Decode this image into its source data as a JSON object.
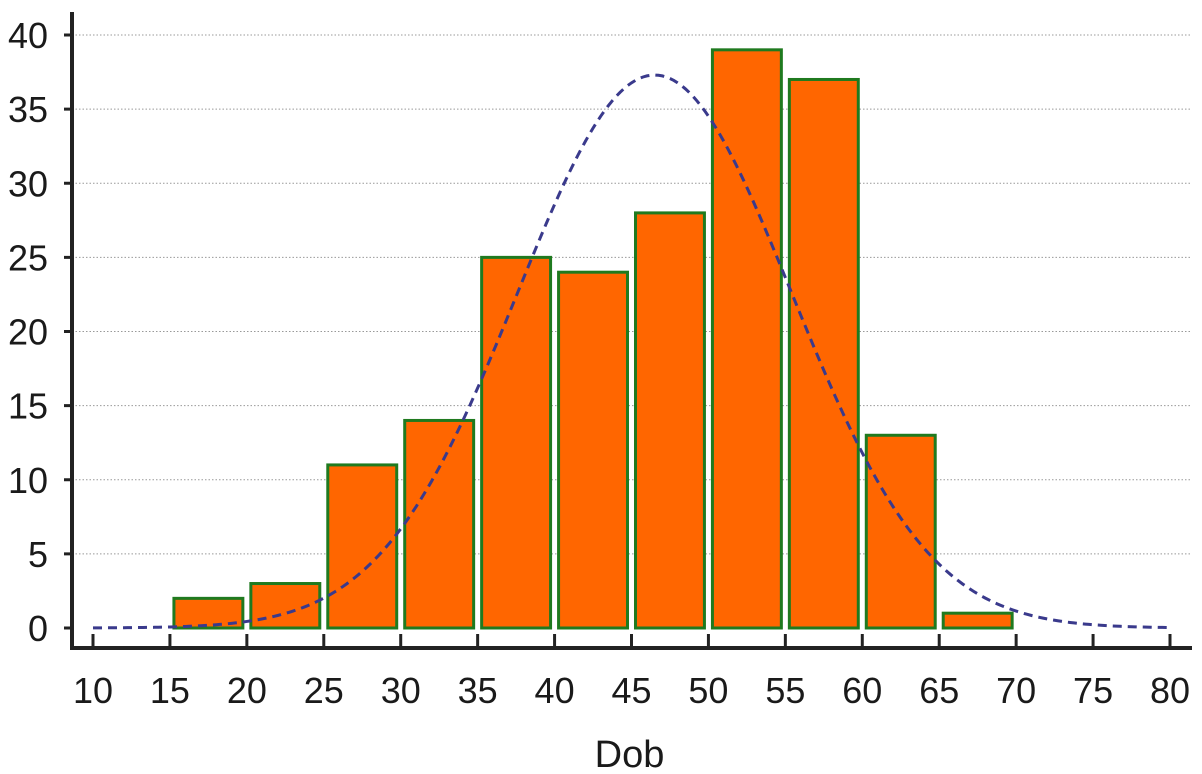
{
  "chart_data": {
    "type": "bar",
    "title": "",
    "xlabel": "Dob",
    "ylabel": "",
    "xlim": [
      10,
      80
    ],
    "ylim": [
      0,
      40
    ],
    "x_ticks": [
      10,
      15,
      20,
      25,
      30,
      35,
      40,
      45,
      50,
      55,
      60,
      65,
      70,
      75,
      80
    ],
    "y_ticks": [
      0,
      5,
      10,
      15,
      20,
      25,
      30,
      35,
      40
    ],
    "grid": "horizontal dotted",
    "legend": "none",
    "bin_width": 5,
    "bins": [
      {
        "start": 15,
        "end": 20,
        "count": 2
      },
      {
        "start": 20,
        "end": 25,
        "count": 3
      },
      {
        "start": 25,
        "end": 30,
        "count": 11
      },
      {
        "start": 30,
        "end": 35,
        "count": 14
      },
      {
        "start": 35,
        "end": 40,
        "count": 25
      },
      {
        "start": 40,
        "end": 45,
        "count": 24
      },
      {
        "start": 45,
        "end": 50,
        "count": 28
      },
      {
        "start": 50,
        "end": 55,
        "count": 39
      },
      {
        "start": 55,
        "end": 60,
        "count": 37
      },
      {
        "start": 60,
        "end": 65,
        "count": 13
      },
      {
        "start": 65,
        "end": 70,
        "count": 1
      }
    ],
    "normal_curve": {
      "style": "dashed",
      "mean": 46.5,
      "sd": 8.9,
      "peak": 37.3
    },
    "colors": {
      "bar_fill": "#ff6600",
      "bar_stroke": "#1f7a1f",
      "curve": "#3a3a8c",
      "grid": "#999999",
      "axis": "#222222"
    }
  }
}
